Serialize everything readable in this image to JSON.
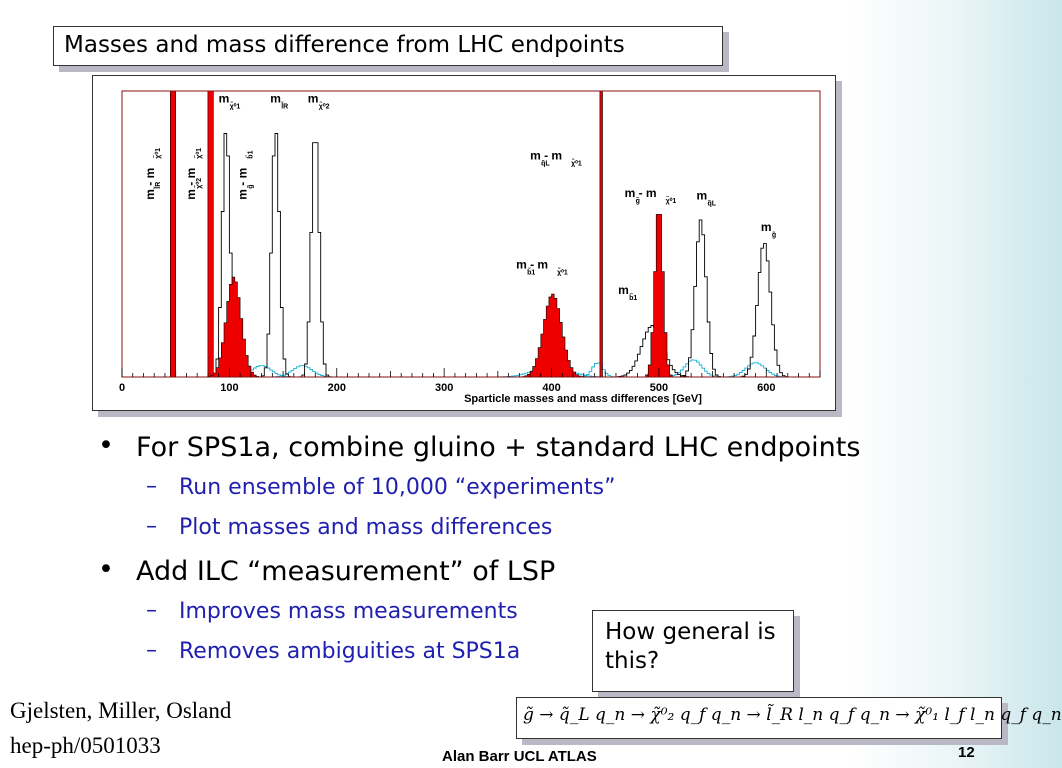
{
  "slide": {
    "title": "Masses and mass difference from LHC endpoints",
    "bullets": [
      {
        "text": "For SPS1a, combine gluino + standard LHC endpoints",
        "subs": [
          "Run ensemble of 10,000 “experiments”",
          "Plot masses and mass differences"
        ]
      },
      {
        "text": "Add ILC “measurement” of LSP",
        "subs": [
          "Improves mass measurements",
          "Removes ambiguities at SPS1a"
        ]
      }
    ],
    "callout": "How general is this?",
    "formula": "g̃ → q̃_L q_n → χ̃⁰₂ q_f q_n → l̃_R l_n q_f q_n → χ̃⁰₁ l_f l_n q_f q_n",
    "reference_line1": "Gjelsten, Miller, Osland",
    "reference_line2": "hep-ph/0501033",
    "footer_author": "Alan Barr   UCL ATLAS",
    "page_number": "12"
  },
  "chart_data": {
    "type": "histogram",
    "xlabel": "Sparticle masses and mass differences [GeV]",
    "ylabel": "",
    "xlim": [
      0,
      650
    ],
    "xticks": [
      0,
      100,
      200,
      300,
      400,
      500,
      600
    ],
    "bin_width": 2.5,
    "grid": false,
    "colors": {
      "red": "#ee0000",
      "outline": "#000000",
      "cyan": "#18b0d8",
      "frame": "#8a1010"
    },
    "series": [
      {
        "name": "m_l̃R − m_χ̃⁰1",
        "style": "red",
        "center": 47.5,
        "sigma": 0.45,
        "peak": 1.0
      },
      {
        "name": "m_χ̃⁰2 − m_χ̃⁰1",
        "style": "red",
        "center": 82.5,
        "sigma": 0.45,
        "peak": 1.0
      },
      {
        "name": "m_g̃ − m_b̃1",
        "style": "red",
        "center": 104.0,
        "sigma": 7.0,
        "peak": 0.35
      },
      {
        "name": "m_b̃1 − m_χ̃⁰1",
        "style": "red",
        "center": 401.0,
        "sigma": 8.5,
        "peak": 0.29
      },
      {
        "name": "m_q̃L − m_χ̃⁰1",
        "style": "red",
        "center": 446.0,
        "sigma": 1.1,
        "peak": 1.0
      },
      {
        "name": "m_g̃ − m_χ̃⁰1",
        "style": "red",
        "center": 500.0,
        "sigma": 3.8,
        "peak": 0.6
      },
      {
        "name": "m_χ̃⁰1",
        "style": "outline",
        "center": 97.0,
        "sigma": 3.6,
        "peak": 0.87
      },
      {
        "name": "m_l̃R",
        "style": "outline",
        "center": 143.0,
        "sigma": 3.6,
        "peak": 0.87
      },
      {
        "name": "m_χ̃⁰2",
        "style": "outline",
        "center": 180.0,
        "sigma": 3.6,
        "peak": 0.87
      },
      {
        "name": "m_q̃L",
        "style": "outline",
        "center": 539.0,
        "sigma": 5.0,
        "peak": 0.55
      },
      {
        "name": "m_g̃",
        "style": "outline",
        "center": 598.0,
        "sigma": 6.0,
        "peak": 0.47
      },
      {
        "name": "m_b̃1",
        "style": "outline",
        "center": 494.0,
        "sigma": 10.0,
        "peak": 0.18
      },
      {
        "name": "",
        "style": "cyan",
        "center": 130.0,
        "sigma": 9.0,
        "peak": 0.04
      },
      {
        "name": "",
        "style": "cyan",
        "center": 168.0,
        "sigma": 9.0,
        "peak": 0.04
      },
      {
        "name": "",
        "style": "cyan",
        "center": 400.0,
        "sigma": 16.0,
        "peak": 0.04
      },
      {
        "name": "",
        "style": "cyan",
        "center": 443.0,
        "sigma": 5.0,
        "peak": 0.05
      },
      {
        "name": "",
        "style": "cyan",
        "center": 532.0,
        "sigma": 8.0,
        "peak": 0.06
      },
      {
        "name": "",
        "style": "cyan",
        "center": 590.0,
        "sigma": 9.0,
        "peak": 0.05
      }
    ],
    "annotations": [
      {
        "text": "m  - m",
        "sub1": "l̃R",
        "sub2": "χ̃⁰1",
        "x": 30,
        "y": 0.62,
        "vertical": true
      },
      {
        "text": "m  - m",
        "sub1": "χ̃⁰2",
        "sub2": "χ̃⁰1",
        "x": 68,
        "y": 0.62,
        "vertical": true
      },
      {
        "text": "m  - m",
        "sub1": "g̃",
        "sub2": "b̃1",
        "x": 116,
        "y": 0.62,
        "vertical": true
      },
      {
        "text": "m",
        "sub1": "χ̃⁰1",
        "sub2": "",
        "x": 90,
        "y": 0.96,
        "vertical": false
      },
      {
        "text": "m",
        "sub1": "l̃R",
        "sub2": "",
        "x": 138,
        "y": 0.96,
        "vertical": false
      },
      {
        "text": "m",
        "sub1": "χ̃⁰2",
        "sub2": "",
        "x": 173,
        "y": 0.96,
        "vertical": false
      },
      {
        "text": "m  - m",
        "sub1": "q̃L",
        "sub2": "χ̃⁰1",
        "x": 380,
        "y": 0.76,
        "vertical": false
      },
      {
        "text": "m  - m",
        "sub1": "g̃",
        "sub2": "χ̃⁰1",
        "x": 468,
        "y": 0.63,
        "vertical": false
      },
      {
        "text": "m",
        "sub1": "q̃L",
        "sub2": "",
        "x": 535,
        "y": 0.62,
        "vertical": false
      },
      {
        "text": "m",
        "sub1": "g̃",
        "sub2": "",
        "x": 595,
        "y": 0.51,
        "vertical": false
      },
      {
        "text": "m  - m",
        "sub1": "b̃1",
        "sub2": "χ̃⁰1",
        "x": 367,
        "y": 0.38,
        "vertical": false
      },
      {
        "text": "m",
        "sub1": "b̃1",
        "sub2": "",
        "x": 462,
        "y": 0.29,
        "vertical": false
      }
    ]
  }
}
